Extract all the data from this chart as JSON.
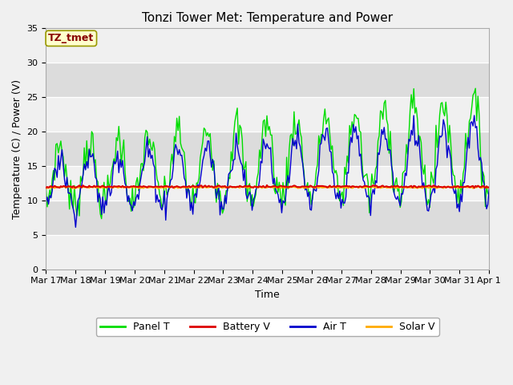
{
  "title": "Tonzi Tower Met: Temperature and Power",
  "xlabel": "Time",
  "ylabel": "Temperature (C) / Power (V)",
  "ylim": [
    0,
    35
  ],
  "line_colors": {
    "panel_t": "#00dd00",
    "battery_v": "#dd0000",
    "air_t": "#0000cc",
    "solar_v": "#ffaa00"
  },
  "legend_labels": [
    "Panel T",
    "Battery V",
    "Air T",
    "Solar V"
  ],
  "annotation_text": "TZ_tmet",
  "annotation_bg": "#ffffcc",
  "annotation_fg": "#880000",
  "x_tick_labels": [
    "Mar 17",
    "Mar 18",
    "Mar 19",
    "Mar 20",
    "Mar 21",
    "Mar 22",
    "Mar 23",
    "Mar 24",
    "Mar 25",
    "Mar 26",
    "Mar 27",
    "Mar 28",
    "Mar 29",
    "Mar 30",
    "Mar 31",
    "Apr 1"
  ],
  "title_fontsize": 11,
  "axis_label_fontsize": 9,
  "tick_fontsize": 8,
  "legend_fontsize": 9,
  "fig_bg": "#f0f0f0",
  "plot_bg": "#dcdcdc"
}
